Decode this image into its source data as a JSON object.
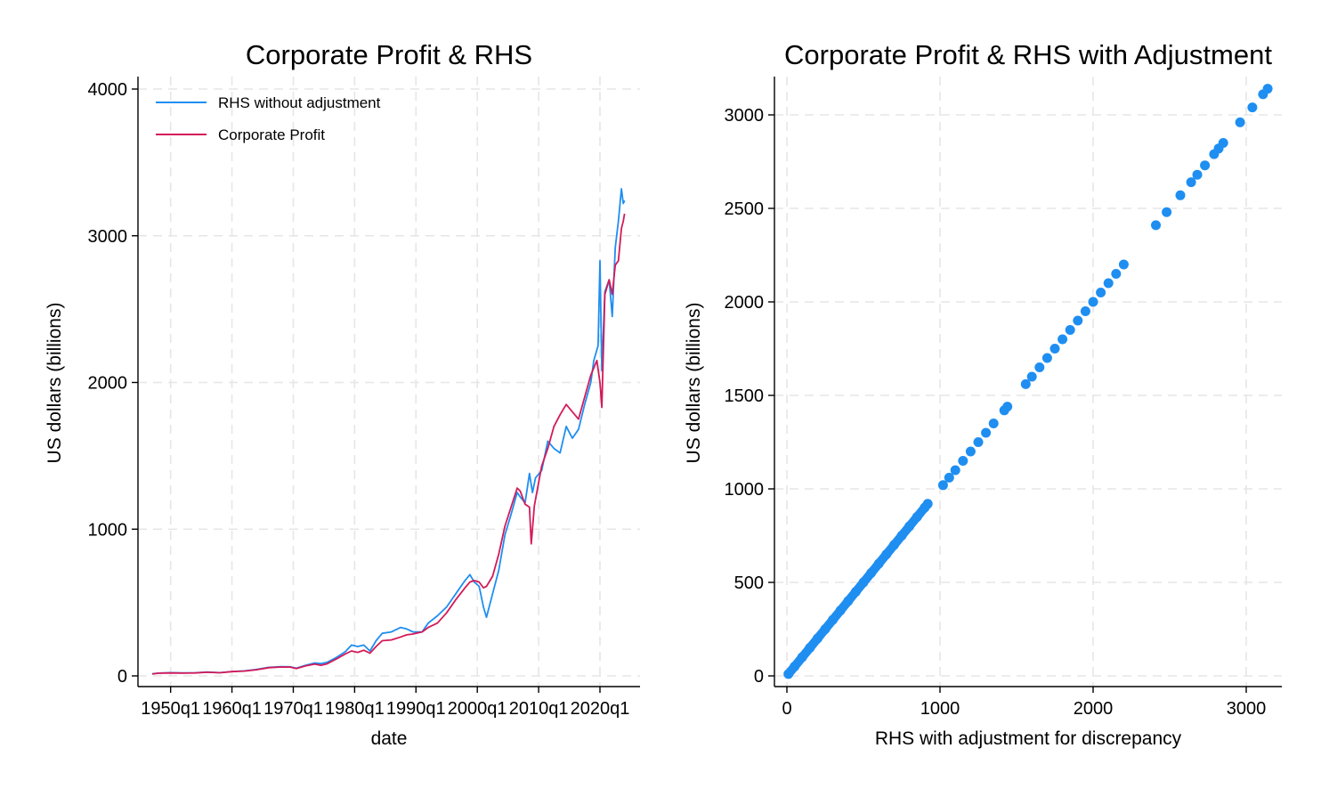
{
  "chart_data": [
    {
      "type": "line",
      "title": "Corporate Profit & RHS",
      "xlabel": "date",
      "ylabel": "US dollars (billions)",
      "xlim": [
        1947.0,
        2024.5
      ],
      "ylim": [
        0,
        4000
      ],
      "yticks": [
        0,
        1000,
        2000,
        3000,
        4000
      ],
      "xticks": [
        {
          "value": 1950,
          "label": "1950q1"
        },
        {
          "value": 1960,
          "label": "1960q1"
        },
        {
          "value": 1970,
          "label": "1970q1"
        },
        {
          "value": 1980,
          "label": "1980q1"
        },
        {
          "value": 1990,
          "label": "1990q1"
        },
        {
          "value": 2000,
          "label": "2000q1"
        },
        {
          "value": 2010,
          "label": "2010q1"
        },
        {
          "value": 2020,
          "label": "2020q1"
        }
      ],
      "grid": true,
      "legend": "top-left",
      "series": [
        {
          "name": "RHS without adjustment",
          "color": "#1f8ef1",
          "points": [
            [
              1947.0,
              14
            ],
            [
              1948.0,
              19
            ],
            [
              1950.0,
              22
            ],
            [
              1952.0,
              20
            ],
            [
              1954.0,
              21
            ],
            [
              1956.0,
              26
            ],
            [
              1958.0,
              22
            ],
            [
              1960.0,
              30
            ],
            [
              1962.0,
              34
            ],
            [
              1964.0,
              44
            ],
            [
              1966.0,
              58
            ],
            [
              1968.0,
              63
            ],
            [
              1969.5,
              62
            ],
            [
              1970.5,
              52
            ],
            [
              1972.0,
              72
            ],
            [
              1973.5,
              88
            ],
            [
              1974.5,
              84
            ],
            [
              1975.5,
              92
            ],
            [
              1977.0,
              125
            ],
            [
              1978.5,
              165
            ],
            [
              1979.5,
              210
            ],
            [
              1980.5,
              200
            ],
            [
              1981.5,
              210
            ],
            [
              1982.5,
              170
            ],
            [
              1983.5,
              240
            ],
            [
              1984.5,
              290
            ],
            [
              1986.0,
              300
            ],
            [
              1987.5,
              330
            ],
            [
              1988.5,
              320
            ],
            [
              1989.5,
              300
            ],
            [
              1991.0,
              300
            ],
            [
              1992.0,
              360
            ],
            [
              1993.5,
              410
            ],
            [
              1995.0,
              470
            ],
            [
              1996.5,
              560
            ],
            [
              1998.0,
              650
            ],
            [
              1998.8,
              690
            ],
            [
              1999.5,
              640
            ],
            [
              2000.3,
              610
            ],
            [
              2001.0,
              470
            ],
            [
              2001.5,
              400
            ],
            [
              2002.5,
              560
            ],
            [
              2003.5,
              720
            ],
            [
              2004.5,
              960
            ],
            [
              2005.5,
              1100
            ],
            [
              2006.5,
              1250
            ],
            [
              2007.0,
              1220
            ],
            [
              2007.8,
              1180
            ],
            [
              2008.5,
              1380
            ],
            [
              2009.0,
              1250
            ],
            [
              2009.5,
              1350
            ],
            [
              2010.5,
              1400
            ],
            [
              2011.5,
              1600
            ],
            [
              2012.5,
              1550
            ],
            [
              2013.5,
              1520
            ],
            [
              2014.5,
              1700
            ],
            [
              2015.5,
              1620
            ],
            [
              2016.5,
              1680
            ],
            [
              2017.5,
              1850
            ],
            [
              2018.5,
              2000
            ],
            [
              2019.0,
              2150
            ],
            [
              2019.7,
              2250
            ],
            [
              2020.0,
              2830
            ],
            [
              2020.3,
              2080
            ],
            [
              2020.8,
              2620
            ],
            [
              2021.5,
              2700
            ],
            [
              2022.0,
              2450
            ],
            [
              2022.5,
              2920
            ],
            [
              2023.0,
              3100
            ],
            [
              2023.5,
              3320
            ],
            [
              2023.8,
              3220
            ],
            [
              2024.0,
              3240
            ]
          ]
        },
        {
          "name": "Corporate Profit",
          "color": "#d41a58",
          "points": [
            [
              1947.0,
              13
            ],
            [
              1948.0,
              18
            ],
            [
              1950.0,
              20
            ],
            [
              1952.0,
              19
            ],
            [
              1954.0,
              20
            ],
            [
              1956.0,
              25
            ],
            [
              1958.0,
              21
            ],
            [
              1960.0,
              29
            ],
            [
              1962.0,
              33
            ],
            [
              1964.0,
              42
            ],
            [
              1966.0,
              56
            ],
            [
              1968.0,
              61
            ],
            [
              1969.5,
              60
            ],
            [
              1970.5,
              50
            ],
            [
              1972.0,
              68
            ],
            [
              1973.5,
              80
            ],
            [
              1974.5,
              72
            ],
            [
              1975.5,
              82
            ],
            [
              1977.0,
              115
            ],
            [
              1978.5,
              150
            ],
            [
              1979.5,
              170
            ],
            [
              1980.5,
              160
            ],
            [
              1981.5,
              175
            ],
            [
              1982.5,
              155
            ],
            [
              1983.5,
              200
            ],
            [
              1984.5,
              240
            ],
            [
              1986.0,
              245
            ],
            [
              1987.5,
              265
            ],
            [
              1988.5,
              280
            ],
            [
              1989.5,
              285
            ],
            [
              1991.0,
              300
            ],
            [
              1992.0,
              330
            ],
            [
              1993.5,
              360
            ],
            [
              1995.0,
              430
            ],
            [
              1996.5,
              520
            ],
            [
              1998.0,
              600
            ],
            [
              1998.8,
              640
            ],
            [
              1999.5,
              650
            ],
            [
              2000.3,
              640
            ],
            [
              2001.0,
              600
            ],
            [
              2001.5,
              610
            ],
            [
              2002.5,
              680
            ],
            [
              2003.5,
              830
            ],
            [
              2004.5,
              1020
            ],
            [
              2005.5,
              1150
            ],
            [
              2006.5,
              1280
            ],
            [
              2007.0,
              1260
            ],
            [
              2007.8,
              1170
            ],
            [
              2008.5,
              1150
            ],
            [
              2008.8,
              900
            ],
            [
              2009.3,
              1160
            ],
            [
              2010.5,
              1430
            ],
            [
              2011.5,
              1550
            ],
            [
              2012.5,
              1700
            ],
            [
              2013.5,
              1780
            ],
            [
              2014.5,
              1850
            ],
            [
              2015.5,
              1800
            ],
            [
              2016.5,
              1750
            ],
            [
              2017.5,
              1900
            ],
            [
              2018.5,
              2050
            ],
            [
              2019.5,
              2150
            ],
            [
              2020.0,
              2000
            ],
            [
              2020.3,
              1830
            ],
            [
              2020.8,
              2600
            ],
            [
              2021.5,
              2700
            ],
            [
              2022.0,
              2600
            ],
            [
              2022.5,
              2800
            ],
            [
              2023.0,
              2830
            ],
            [
              2023.5,
              3050
            ],
            [
              2023.8,
              3100
            ],
            [
              2024.0,
              3150
            ]
          ]
        }
      ]
    },
    {
      "type": "scatter",
      "title": "Corporate Profit & RHS with Adjustment",
      "xlabel": "RHS with adjustment for discrepancy",
      "ylabel": "US dollars (billions)",
      "xlim": [
        -80,
        3220
      ],
      "ylim": [
        -60,
        3200
      ],
      "xticks": [
        0,
        1000,
        2000,
        3000
      ],
      "yticks": [
        0,
        500,
        1000,
        1500,
        2000,
        2500,
        3000
      ],
      "grid": true,
      "series": [
        {
          "color": "#1f8ef1",
          "points": [
            [
              10,
              10
            ],
            [
              50,
              50
            ],
            [
              100,
              100
            ],
            [
              150,
              150
            ],
            [
              200,
              200
            ],
            [
              250,
              250
            ],
            [
              300,
              300
            ],
            [
              350,
              350
            ],
            [
              400,
              400
            ],
            [
              450,
              450
            ],
            [
              500,
              500
            ],
            [
              550,
              550
            ],
            [
              600,
              600
            ],
            [
              650,
              650
            ],
            [
              700,
              700
            ],
            [
              750,
              750
            ],
            [
              800,
              800
            ],
            [
              850,
              850
            ],
            [
              900,
              900
            ],
            [
              920,
              920
            ],
            [
              1020,
              1020
            ],
            [
              1060,
              1060
            ],
            [
              1100,
              1100
            ],
            [
              1150,
              1150
            ],
            [
              1200,
              1200
            ],
            [
              1250,
              1250
            ],
            [
              1300,
              1300
            ],
            [
              1350,
              1350
            ],
            [
              1420,
              1420
            ],
            [
              1440,
              1440
            ],
            [
              1560,
              1560
            ],
            [
              1600,
              1600
            ],
            [
              1650,
              1650
            ],
            [
              1700,
              1700
            ],
            [
              1750,
              1750
            ],
            [
              1800,
              1800
            ],
            [
              1850,
              1850
            ],
            [
              1900,
              1900
            ],
            [
              1950,
              1950
            ],
            [
              2000,
              2000
            ],
            [
              2050,
              2050
            ],
            [
              2100,
              2100
            ],
            [
              2150,
              2150
            ],
            [
              2200,
              2200
            ],
            [
              2410,
              2410
            ],
            [
              2480,
              2480
            ],
            [
              2570,
              2570
            ],
            [
              2640,
              2640
            ],
            [
              2680,
              2680
            ],
            [
              2730,
              2730
            ],
            [
              2790,
              2790
            ],
            [
              2820,
              2820
            ],
            [
              2850,
              2850
            ],
            [
              2960,
              2960
            ],
            [
              3040,
              3040
            ],
            [
              3110,
              3110
            ],
            [
              3140,
              3140
            ]
          ]
        }
      ]
    }
  ]
}
